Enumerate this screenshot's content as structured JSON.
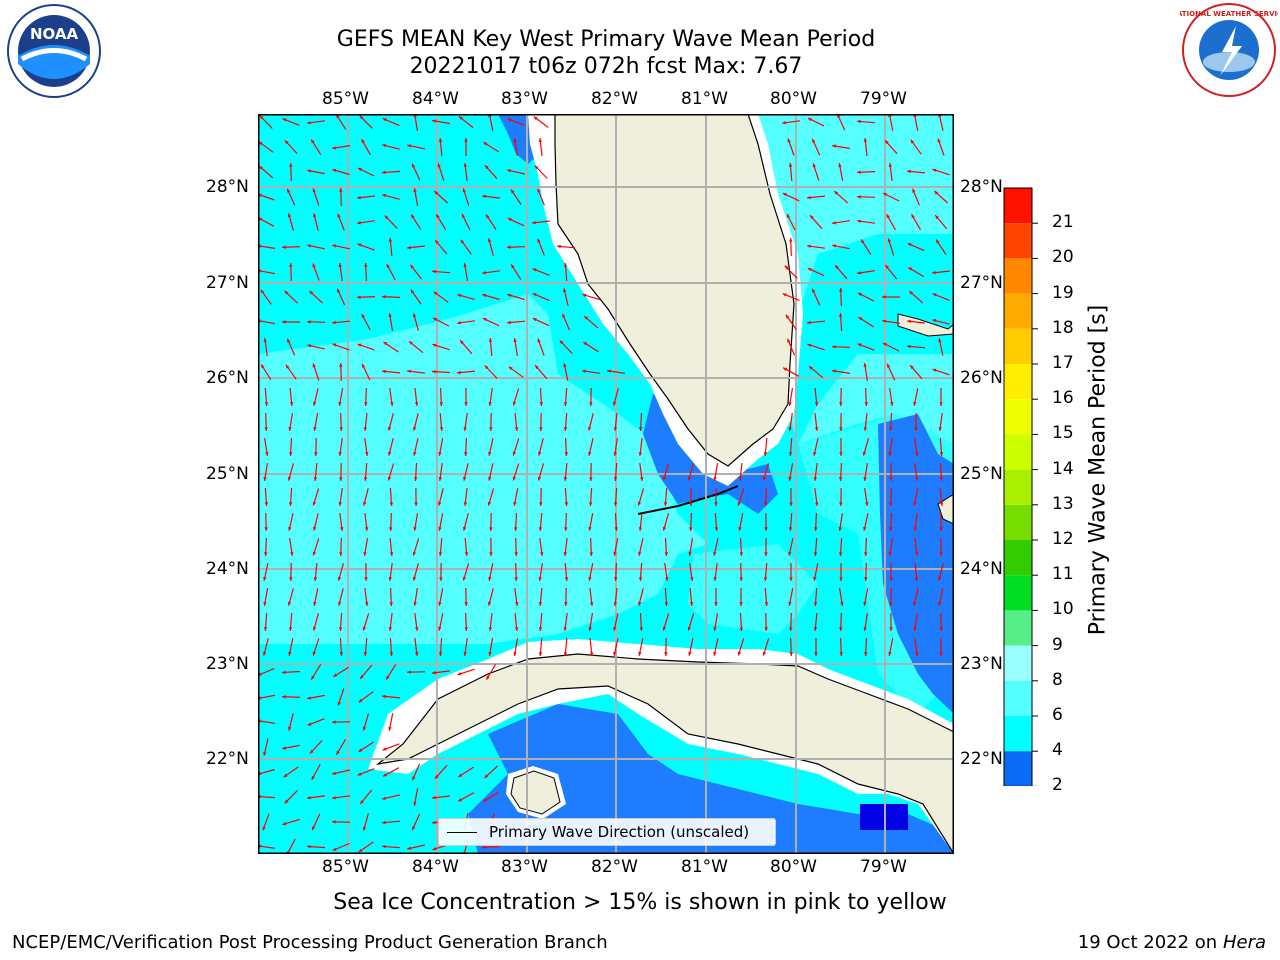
{
  "title": {
    "line1": "GEFS MEAN Key West Primary Wave Mean Period",
    "line2": "20221017 t06z 072h fcst   Max: 7.67"
  },
  "map": {
    "lon_labels": [
      "85°W",
      "84°W",
      "83°W",
      "82°W",
      "81°W",
      "80°W",
      "79°W"
    ],
    "lat_labels": [
      "28°N",
      "27°N",
      "26°N",
      "25°N",
      "24°N",
      "23°N",
      "22°N"
    ],
    "extent": {
      "lon_min": -86.0,
      "lon_max": -78.3,
      "lat_min": 21.0,
      "lat_max": 28.75
    },
    "legend_label": "Primary Wave Direction (unscaled)",
    "colors": {
      "land": "#efefdc",
      "cyan": "#00ffff",
      "light_cyan": "#55ffff",
      "blue": "#1e7cff",
      "dark_blue": "#0000e6",
      "arrow": "#ff0000",
      "grid": "#b0b0b0"
    }
  },
  "colorbar": {
    "label": "Primary Wave Mean Period [s]",
    "ticks": [
      "2",
      "4",
      "6",
      "8",
      "9",
      "10",
      "11",
      "12",
      "13",
      "14",
      "15",
      "16",
      "17",
      "18",
      "19",
      "20",
      "21"
    ],
    "colors": [
      "#0a6cf5",
      "#00ffff",
      "#55ffff",
      "#99ffff",
      "#55ee88",
      "#00dd22",
      "#33cc00",
      "#77dd00",
      "#aaee00",
      "#ccff00",
      "#eeff00",
      "#ffee00",
      "#ffcc00",
      "#ffaa00",
      "#ff8800",
      "#ff4400",
      "#ff1100"
    ],
    "under_color": "#0000e6"
  },
  "notes": {
    "ice": "Sea Ice Concentration > 15% is shown in pink to yellow",
    "footer_left": "NCEP/EMC/Verification Post Processing Product Generation Branch",
    "footer_date": "19 Oct 2022 on",
    "footer_host": "Hera"
  },
  "logos": {
    "left": "NOAA",
    "right": "NATIONAL WEATHER SERVICE"
  }
}
